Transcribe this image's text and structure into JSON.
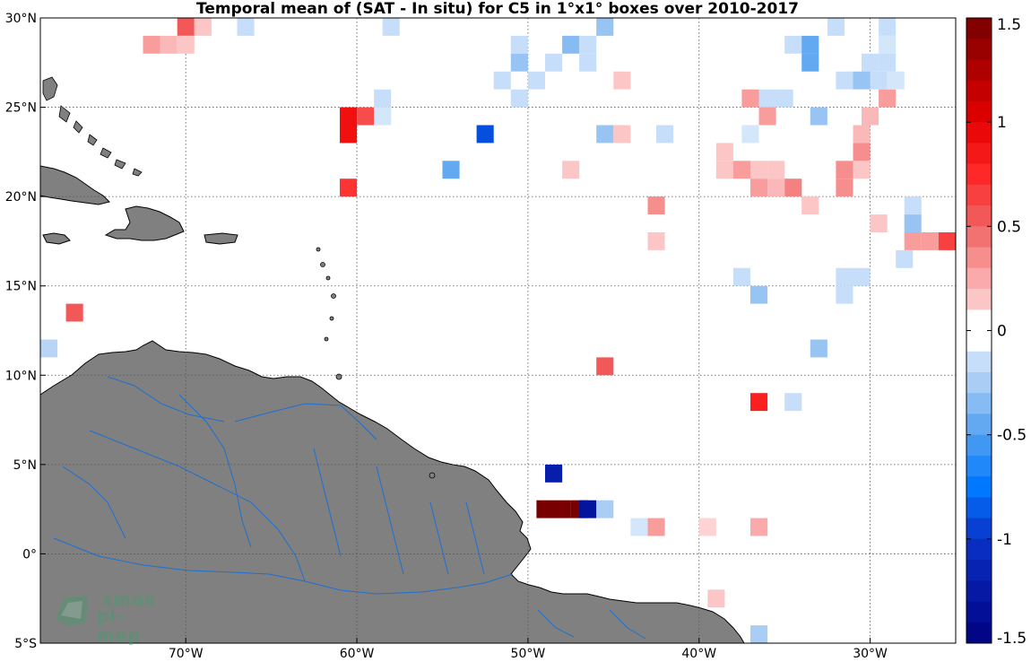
{
  "title": "Temporal mean of (SAT - In situ) for C5 in 1°x1° boxes over 2010-2017",
  "axes": {
    "lon_range": [
      -78.5,
      -25
    ],
    "lat_range": [
      -5,
      30
    ],
    "x_ticks": [
      {
        "value": -70,
        "label": "70°W"
      },
      {
        "value": -60,
        "label": "60°W"
      },
      {
        "value": -50,
        "label": "50°W"
      },
      {
        "value": -40,
        "label": "40°W"
      },
      {
        "value": -30,
        "label": "30°W"
      }
    ],
    "y_ticks": [
      {
        "value": 30,
        "label": "30°N"
      },
      {
        "value": 25,
        "label": "25°N"
      },
      {
        "value": 20,
        "label": "20°N"
      },
      {
        "value": 15,
        "label": "15°N"
      },
      {
        "value": 10,
        "label": "10°N"
      },
      {
        "value": 5,
        "label": "5°N"
      },
      {
        "value": 0,
        "label": "0°"
      },
      {
        "value": -5,
        "label": "5°S"
      }
    ],
    "grid": true
  },
  "colorbar": {
    "range": [
      -1.5,
      1.5
    ],
    "ticks": [
      {
        "value": 1.5,
        "label": "1.5"
      },
      {
        "value": 1,
        "label": "1"
      },
      {
        "value": 0.5,
        "label": "0.5"
      },
      {
        "value": 0,
        "label": "0"
      },
      {
        "value": -0.5,
        "label": "-0.5"
      },
      {
        "value": -1,
        "label": "-1"
      },
      {
        "value": -1.5,
        "label": "-1.5"
      }
    ]
  },
  "colors": {
    "land": "#808080",
    "rivers": "#1f6fd0",
    "coast": "#000000",
    "grid": "#555555"
  },
  "logo": {
    "line1": "smos",
    "line2": "pi-mep"
  },
  "chart_data": {
    "type": "heatmap",
    "title": "Temporal mean of (SAT - In situ) for C5 in 1°x1° boxes over 2010-2017",
    "xlabel": "",
    "ylabel": "",
    "xlim": [
      -78.5,
      -25
    ],
    "ylim": [
      -5,
      30
    ],
    "clim": [
      -1.5,
      1.5
    ],
    "cell_size_deg": 1,
    "cells": [
      {
        "lon": -70,
        "lat": 29.5,
        "v": 0.55
      },
      {
        "lon": -69,
        "lat": 29.5,
        "v": 0.15
      },
      {
        "lon": -66.5,
        "lat": 29.5,
        "v": -0.15
      },
      {
        "lon": -58,
        "lat": 29.5,
        "v": -0.15
      },
      {
        "lon": -45.5,
        "lat": 29.5,
        "v": -0.3
      },
      {
        "lon": -32,
        "lat": 29.5,
        "v": -0.15
      },
      {
        "lon": -29,
        "lat": 29.5,
        "v": -0.15
      },
      {
        "lon": -72,
        "lat": 28.5,
        "v": 0.3
      },
      {
        "lon": -71,
        "lat": 28.5,
        "v": 0.2
      },
      {
        "lon": -70,
        "lat": 28.5,
        "v": 0.15
      },
      {
        "lon": -50.5,
        "lat": 28.5,
        "v": -0.15
      },
      {
        "lon": -47.5,
        "lat": 28.5,
        "v": -0.35
      },
      {
        "lon": -46.5,
        "lat": 28.5,
        "v": -0.15
      },
      {
        "lon": -34.5,
        "lat": 28.5,
        "v": -0.15
      },
      {
        "lon": -33.5,
        "lat": 28.5,
        "v": -0.45
      },
      {
        "lon": -29,
        "lat": 28.5,
        "v": -0.1
      },
      {
        "lon": -50.5,
        "lat": 27.5,
        "v": -0.3
      },
      {
        "lon": -48.5,
        "lat": 27.5,
        "v": -0.15
      },
      {
        "lon": -46.5,
        "lat": 27.5,
        "v": -0.15
      },
      {
        "lon": -33.5,
        "lat": 27.5,
        "v": -0.45
      },
      {
        "lon": -30,
        "lat": 27.5,
        "v": -0.15
      },
      {
        "lon": -29,
        "lat": 27.5,
        "v": -0.15
      },
      {
        "lon": -51.5,
        "lat": 26.5,
        "v": -0.15
      },
      {
        "lon": -49.5,
        "lat": 26.5,
        "v": -0.15
      },
      {
        "lon": -44.5,
        "lat": 26.5,
        "v": 0.15
      },
      {
        "lon": -31.5,
        "lat": 26.5,
        "v": -0.15
      },
      {
        "lon": -30.5,
        "lat": 26.5,
        "v": -0.3
      },
      {
        "lon": -29.5,
        "lat": 26.5,
        "v": -0.15
      },
      {
        "lon": -28.5,
        "lat": 26.5,
        "v": -0.1
      },
      {
        "lon": -58.5,
        "lat": 25.5,
        "v": -0.15
      },
      {
        "lon": -50.5,
        "lat": 25.5,
        "v": -0.15
      },
      {
        "lon": -37,
        "lat": 25.5,
        "v": 0.3
      },
      {
        "lon": -36,
        "lat": 25.5,
        "v": -0.15
      },
      {
        "lon": -35,
        "lat": 25.5,
        "v": -0.15
      },
      {
        "lon": -29,
        "lat": 25.5,
        "v": 0.3
      },
      {
        "lon": -60.5,
        "lat": 24.5,
        "v": 0.9
      },
      {
        "lon": -59.5,
        "lat": 24.5,
        "v": 0.6
      },
      {
        "lon": -58.5,
        "lat": 24.5,
        "v": -0.1
      },
      {
        "lon": -36,
        "lat": 24.5,
        "v": 0.3
      },
      {
        "lon": -33,
        "lat": 24.5,
        "v": -0.3
      },
      {
        "lon": -30,
        "lat": 24.5,
        "v": 0.2
      },
      {
        "lon": -60.5,
        "lat": 23.5,
        "v": 0.9
      },
      {
        "lon": -52.5,
        "lat": 23.5,
        "v": -0.9
      },
      {
        "lon": -45.5,
        "lat": 23.5,
        "v": -0.3
      },
      {
        "lon": -44.5,
        "lat": 23.5,
        "v": 0.15
      },
      {
        "lon": -42,
        "lat": 23.5,
        "v": -0.15
      },
      {
        "lon": -37,
        "lat": 23.5,
        "v": -0.1
      },
      {
        "lon": -30.5,
        "lat": 23.5,
        "v": 0.2
      },
      {
        "lon": -38.5,
        "lat": 22.5,
        "v": 0.15
      },
      {
        "lon": -30.5,
        "lat": 22.5,
        "v": 0.35
      },
      {
        "lon": -38.5,
        "lat": 21.5,
        "v": 0.15
      },
      {
        "lon": -37.5,
        "lat": 21.5,
        "v": 0.3
      },
      {
        "lon": -36.5,
        "lat": 21.5,
        "v": 0.15
      },
      {
        "lon": -35.5,
        "lat": 21.5,
        "v": 0.15
      },
      {
        "lon": -31.5,
        "lat": 21.5,
        "v": 0.35
      },
      {
        "lon": -30.5,
        "lat": 21.5,
        "v": 0.15
      },
      {
        "lon": -54.5,
        "lat": 21.5,
        "v": -0.45
      },
      {
        "lon": -47.5,
        "lat": 21.5,
        "v": 0.15
      },
      {
        "lon": -60.5,
        "lat": 20.5,
        "v": 0.7
      },
      {
        "lon": -36.5,
        "lat": 20.5,
        "v": 0.3
      },
      {
        "lon": -35.5,
        "lat": 20.5,
        "v": 0.2
      },
      {
        "lon": -34.5,
        "lat": 20.5,
        "v": 0.4
      },
      {
        "lon": -31.5,
        "lat": 20.5,
        "v": 0.35
      },
      {
        "lon": -42.5,
        "lat": 19.5,
        "v": 0.35
      },
      {
        "lon": -33.5,
        "lat": 19.5,
        "v": 0.15
      },
      {
        "lon": -27.5,
        "lat": 19.5,
        "v": -0.15
      },
      {
        "lon": -29.5,
        "lat": 18.5,
        "v": 0.15
      },
      {
        "lon": -27.5,
        "lat": 18.5,
        "v": -0.3
      },
      {
        "lon": -27.5,
        "lat": 17.5,
        "v": 0.3
      },
      {
        "lon": -26.5,
        "lat": 17.5,
        "v": 0.3
      },
      {
        "lon": -25.5,
        "lat": 17.5,
        "v": 0.65
      },
      {
        "lon": -42.5,
        "lat": 17.5,
        "v": 0.15
      },
      {
        "lon": -28,
        "lat": 16.5,
        "v": -0.15
      },
      {
        "lon": -37.5,
        "lat": 15.5,
        "v": -0.15
      },
      {
        "lon": -31.5,
        "lat": 15.5,
        "v": -0.15
      },
      {
        "lon": -30.5,
        "lat": 15.5,
        "v": -0.15
      },
      {
        "lon": -36.5,
        "lat": 14.5,
        "v": -0.3
      },
      {
        "lon": -31.5,
        "lat": 14.5,
        "v": -0.15
      },
      {
        "lon": -76.5,
        "lat": 13.5,
        "v": 0.55
      },
      {
        "lon": -78,
        "lat": 11.5,
        "v": -0.2
      },
      {
        "lon": -33,
        "lat": 11.5,
        "v": -0.3
      },
      {
        "lon": -45.5,
        "lat": 10.5,
        "v": 0.55
      },
      {
        "lon": -36.5,
        "lat": 8.5,
        "v": 0.8
      },
      {
        "lon": -34.5,
        "lat": 8.5,
        "v": -0.15
      },
      {
        "lon": -48.5,
        "lat": 4.5,
        "v": -1.2
      },
      {
        "lon": -49,
        "lat": 2.5,
        "v": 1.5
      },
      {
        "lon": -48,
        "lat": 2.5,
        "v": 1.5
      },
      {
        "lon": -47,
        "lat": 2.5,
        "v": 1.5
      },
      {
        "lon": -46.5,
        "lat": 2.5,
        "v": -1.3
      },
      {
        "lon": -45.5,
        "lat": 2.5,
        "v": -0.25
      },
      {
        "lon": -43.5,
        "lat": 1.5,
        "v": -0.1
      },
      {
        "lon": -42.5,
        "lat": 1.5,
        "v": 0.3
      },
      {
        "lon": -39.5,
        "lat": 1.5,
        "v": 0.1
      },
      {
        "lon": -36.5,
        "lat": 1.5,
        "v": 0.25
      },
      {
        "lon": -39,
        "lat": -2.5,
        "v": 0.15
      },
      {
        "lon": -36.5,
        "lat": -4.5,
        "v": -0.25
      }
    ]
  }
}
